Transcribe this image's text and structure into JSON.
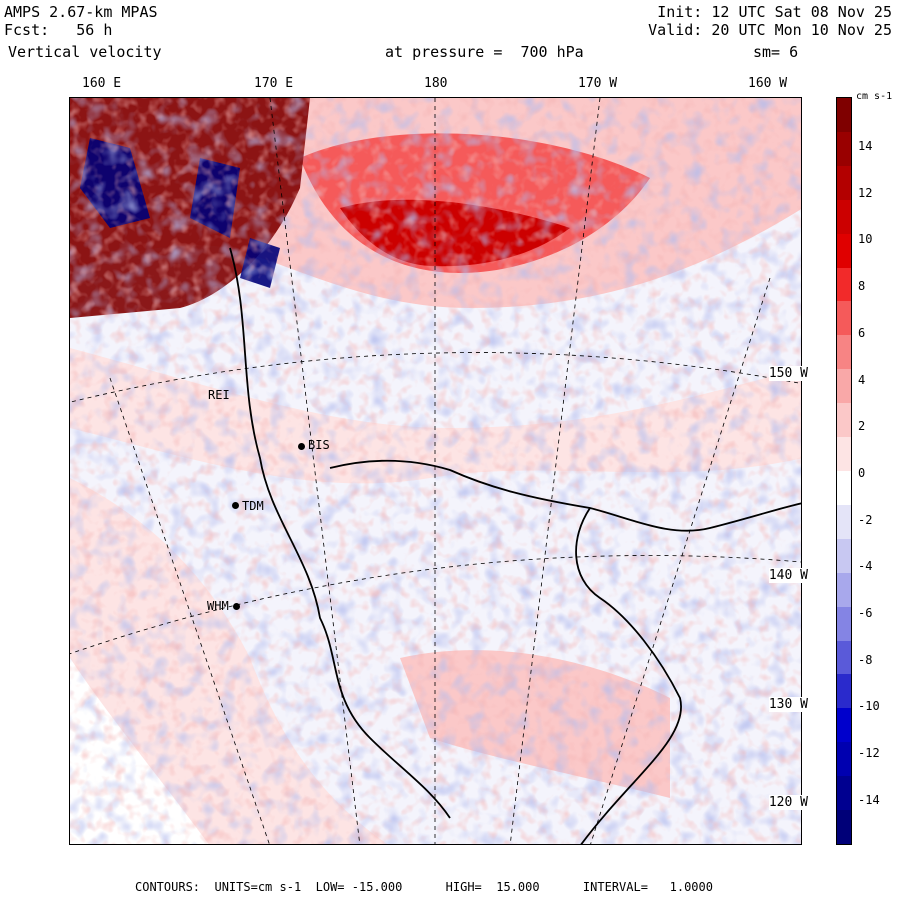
{
  "header": {
    "model": "AMPS 2.67-km MPAS",
    "forecast": "Fcst:   56 h",
    "variable": "Vertical velocity",
    "init": "Init: 12 UTC Sat 08 Nov 25",
    "valid": "Valid: 20 UTC Mon 10 Nov 25",
    "pressure": "at pressure =  700 hPa",
    "smoothing": "sm= 6"
  },
  "longitude_labels": [
    "160 E",
    "170 E",
    "180",
    "170 W",
    "160 W"
  ],
  "latitude_labels": [
    "150 W",
    "140 W",
    "130 W",
    "120 W"
  ],
  "stations": [
    "BIS",
    "TDM",
    "WHM",
    "REI"
  ],
  "colorbar": {
    "units": "cm s-1",
    "ticks": [
      "14",
      "12",
      "10",
      "8",
      "6",
      "4",
      "2",
      "0",
      "-2",
      "-4",
      "-6",
      "-8",
      "-10",
      "-12",
      "-14"
    ],
    "colors": [
      "#7f0000",
      "#990000",
      "#b30000",
      "#cc0000",
      "#e00000",
      "#f22a2a",
      "#f55a5a",
      "#f78484",
      "#f9a8a8",
      "#fbc8c8",
      "#fde4e4",
      "#ffffff",
      "#e4e4f8",
      "#c8c8f2",
      "#a8a8ec",
      "#8484e4",
      "#5a5ad9",
      "#2a2acc",
      "#0000cc",
      "#0000b0",
      "#000090",
      "#000078"
    ]
  },
  "footer": "CONTOURS:  UNITS=cm s-1  LOW= -15.000      HIGH=  15.000      INTERVAL=   1.0000"
}
